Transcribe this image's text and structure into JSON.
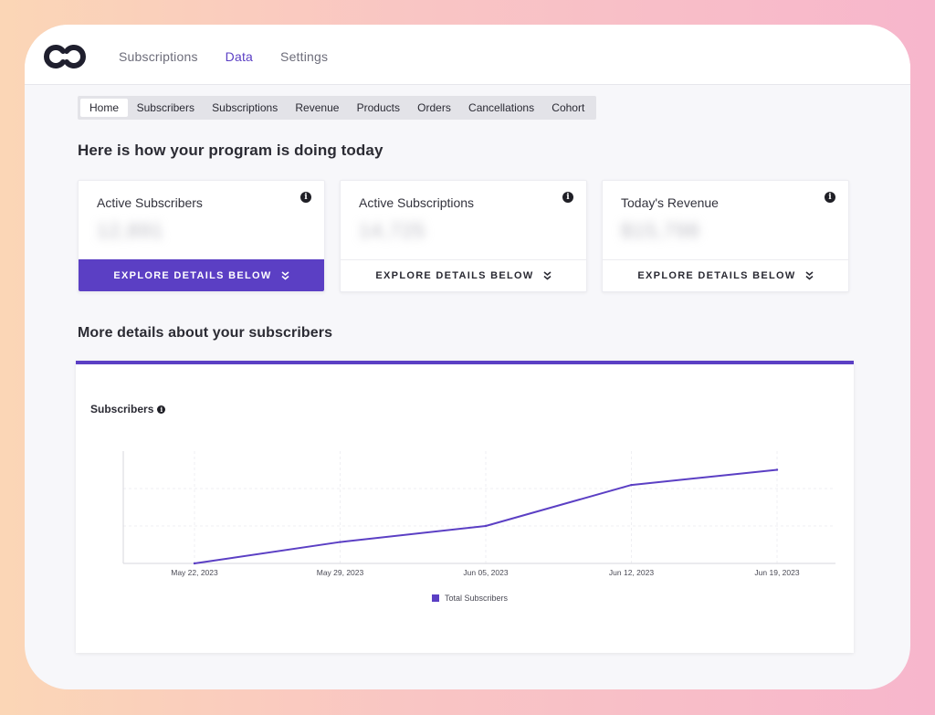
{
  "topnav": {
    "items": [
      {
        "label": "Subscriptions",
        "active": false
      },
      {
        "label": "Data",
        "active": true
      },
      {
        "label": "Settings",
        "active": false
      }
    ]
  },
  "subtabs": [
    "Home",
    "Subscribers",
    "Subscriptions",
    "Revenue",
    "Products",
    "Orders",
    "Cancellations",
    "Cohort"
  ],
  "headings": {
    "main": "Here is how your program is doing today",
    "details": "More details about your subscribers"
  },
  "cards": [
    {
      "label": "Active Subscribers",
      "value": "12,891",
      "cta": "EXPLORE DETAILS BELOW",
      "primary": true
    },
    {
      "label": "Active Subscriptions",
      "value": "14,725",
      "cta": "EXPLORE DETAILS BELOW",
      "primary": false
    },
    {
      "label": "Today's Revenue",
      "value": "$15,798",
      "cta": "EXPLORE DETAILS BELOW",
      "primary": false
    }
  ],
  "colors": {
    "accent": "#5b3fc4"
  },
  "chart_data": {
    "type": "line",
    "title": "Subscribers",
    "categories": [
      "May 22, 2023",
      "May 29, 2023",
      "Jun 05, 2023",
      "Jun 12, 2023",
      "Jun 19, 2023"
    ],
    "series": [
      {
        "name": "Total Subscribers",
        "values": [
          0,
          24,
          42,
          88,
          105
        ]
      }
    ],
    "ylim": [
      0,
      126
    ],
    "grid": true,
    "legend": "bottom-center"
  }
}
